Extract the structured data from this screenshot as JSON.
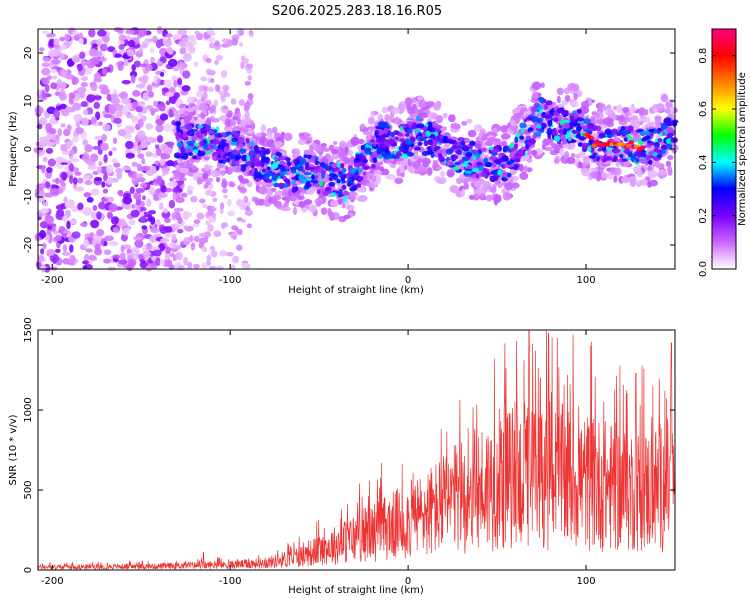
{
  "title": "S206.2025.283.18.16.R05",
  "chart_data": [
    {
      "type": "heatmap",
      "xlabel": "Height of straight line (km)",
      "ylabel": "Frequency (Hz)",
      "xlim": [
        -208,
        150
      ],
      "ylim": [
        -25,
        25
      ],
      "xticks": [
        -200,
        -100,
        0,
        100
      ],
      "yticks": [
        -20,
        -10,
        0,
        10,
        20
      ],
      "colorbar": {
        "label": "Normalized spectral amplitude",
        "range": [
          0,
          0.9
        ],
        "ticks": [
          "0.0",
          "0.2",
          "0.4",
          "0.6",
          "0.8"
        ],
        "tick_values": [
          0,
          0.2,
          0.4,
          0.6,
          0.8
        ],
        "colors": [
          "#ffffff",
          "#cc66ff",
          "#7a00ff",
          "#0000ff",
          "#00ffff",
          "#00ff00",
          "#ffff00",
          "#ff8000",
          "#ff0000",
          "#ff0080"
        ]
      },
      "ridge": [
        {
          "x": -130,
          "y": 2
        },
        {
          "x": -110,
          "y": 1
        },
        {
          "x": -95,
          "y": 0
        },
        {
          "x": -85,
          "y": -3
        },
        {
          "x": -75,
          "y": -4
        },
        {
          "x": -65,
          "y": -5
        },
        {
          "x": -55,
          "y": -5
        },
        {
          "x": -45,
          "y": -6
        },
        {
          "x": -35,
          "y": -7
        },
        {
          "x": -25,
          "y": -3
        },
        {
          "x": -15,
          "y": 2
        },
        {
          "x": -5,
          "y": 1
        },
        {
          "x": 5,
          "y": 3
        },
        {
          "x": 15,
          "y": 2
        },
        {
          "x": 25,
          "y": -1
        },
        {
          "x": 35,
          "y": -2
        },
        {
          "x": 45,
          "y": -3
        },
        {
          "x": 55,
          "y": -3
        },
        {
          "x": 65,
          "y": 2
        },
        {
          "x": 75,
          "y": 7
        },
        {
          "x": 85,
          "y": 5
        },
        {
          "x": 95,
          "y": 5
        },
        {
          "x": 105,
          "y": 1
        },
        {
          "x": 115,
          "y": 1
        },
        {
          "x": 125,
          "y": 1
        },
        {
          "x": 135,
          "y": 0
        },
        {
          "x": 145,
          "y": 3
        }
      ]
    },
    {
      "type": "line",
      "xlabel": "Height of straight line (km)",
      "ylabel": "SNR (10 * v/v)",
      "xlim": [
        -208,
        150
      ],
      "ylim": [
        0,
        1500
      ],
      "xticks": [
        -200,
        -100,
        0,
        100
      ],
      "yticks": [
        0,
        500,
        1000,
        1500
      ],
      "color": "#ee3333",
      "envelope": [
        {
          "x": -208,
          "y": 25
        },
        {
          "x": -150,
          "y": 30
        },
        {
          "x": -120,
          "y": 40
        },
        {
          "x": -100,
          "y": 45
        },
        {
          "x": -80,
          "y": 60
        },
        {
          "x": -60,
          "y": 120
        },
        {
          "x": -40,
          "y": 220
        },
        {
          "x": -20,
          "y": 330
        },
        {
          "x": 0,
          "y": 420
        },
        {
          "x": 20,
          "y": 560
        },
        {
          "x": 40,
          "y": 700
        },
        {
          "x": 60,
          "y": 800
        },
        {
          "x": 80,
          "y": 820
        },
        {
          "x": 100,
          "y": 760
        },
        {
          "x": 120,
          "y": 700
        },
        {
          "x": 135,
          "y": 680
        },
        {
          "x": 150,
          "y": 760
        }
      ],
      "peaks": [
        {
          "x": -115,
          "y": 110
        },
        {
          "x": 68,
          "y": 1500
        },
        {
          "x": 79,
          "y": 1480
        },
        {
          "x": 55,
          "y": 1260
        },
        {
          "x": 148,
          "y": 1420
        },
        {
          "x": 128,
          "y": 1230
        }
      ]
    }
  ]
}
